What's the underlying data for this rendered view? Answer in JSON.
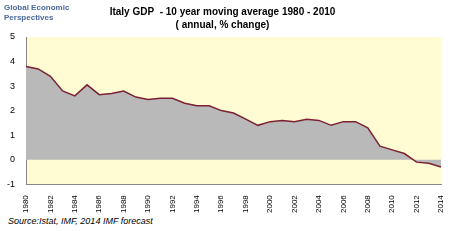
{
  "chart_data": {
    "type": "area",
    "title": "Italy GDP  - 10 year moving average 1980 - 2010",
    "subtitle": "( annual, % change)",
    "logo": "Global Economic Perspectives",
    "source": "Source:Istat, IMF, 2014 IMF forecast",
    "categories": [
      "1980",
      null,
      "1982",
      null,
      "1984",
      null,
      "1986",
      null,
      "1988",
      null,
      "1990",
      null,
      "1992",
      null,
      "1994",
      null,
      "1996",
      null,
      "1998",
      null,
      "2000",
      null,
      "2002",
      null,
      "2004",
      null,
      "2006",
      null,
      "2008",
      null,
      "2010",
      null,
      "2012",
      null,
      "2014"
    ],
    "values": [
      3.8,
      3.7,
      3.4,
      2.8,
      2.6,
      3.05,
      2.65,
      2.7,
      2.8,
      2.55,
      2.45,
      2.5,
      2.5,
      2.3,
      2.2,
      2.2,
      2.0,
      1.9,
      1.65,
      1.4,
      1.55,
      1.6,
      1.55,
      1.65,
      1.6,
      1.4,
      1.55,
      1.55,
      1.3,
      0.55,
      0.4,
      0.25,
      -0.1,
      -0.15,
      -0.3
    ],
    "color": "#7b2035",
    "ylim": [
      -1,
      5
    ],
    "yticks": [
      -1,
      0,
      1,
      2,
      3,
      4,
      5
    ],
    "grid": false
  }
}
